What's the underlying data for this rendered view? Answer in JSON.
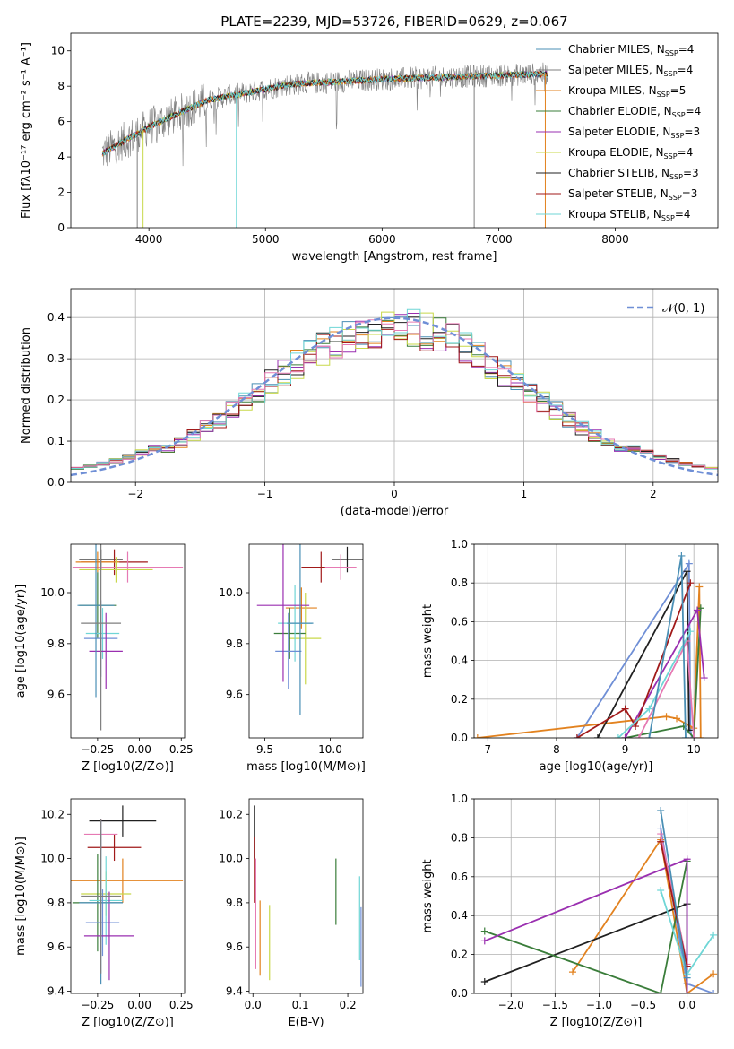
{
  "title": "PLATE=2239, MJD=53726, FIBERID=0629, z=0.067",
  "colors": [
    "#4a8fb5",
    "#7f7f7f",
    "#e2821f",
    "#3a7d3a",
    "#9a2fb0",
    "#c8d84a",
    "#202020",
    "#a11a1a",
    "#6fd6d6",
    "#6f8fd6",
    "#e67ab3"
  ],
  "legend": [
    {
      "label": "Chabrier MILES, N",
      "sub": "SSP",
      "tail": "=4"
    },
    {
      "label": "Salpeter MILES, N",
      "sub": "SSP",
      "tail": "=4"
    },
    {
      "label": "Kroupa MILES, N",
      "sub": "SSP",
      "tail": "=5"
    },
    {
      "label": "Chabrier ELODIE, N",
      "sub": "SSP",
      "tail": "=4"
    },
    {
      "label": "Salpeter ELODIE, N",
      "sub": "SSP",
      "tail": "=3"
    },
    {
      "label": "Kroupa ELODIE, N",
      "sub": "SSP",
      "tail": "=4"
    },
    {
      "label": "Chabrier STELIB, N",
      "sub": "SSP",
      "tail": "=3"
    },
    {
      "label": "Salpeter STELIB, N",
      "sub": "SSP",
      "tail": "=3"
    },
    {
      "label": "Kroupa STELIB, N",
      "sub": "SSP",
      "tail": "=4"
    }
  ],
  "gaussian_label": "𝒩(0, 1)",
  "chart_data": [
    {
      "id": "spectrum",
      "type": "line",
      "xlabel": "wavelength [Angstrom, rest frame]",
      "ylabel": "Flux [fλ10⁻¹⁷ erg cm⁻² s⁻¹ A⁻¹]",
      "xlim": [
        3330,
        8880
      ],
      "ylim": [
        0,
        11
      ],
      "xticks": [
        4000,
        5000,
        6000,
        7000,
        8000
      ],
      "yticks": [
        0,
        2,
        4,
        6,
        8,
        10
      ],
      "x_range": [
        3600,
        7420
      ],
      "grid": false
    },
    {
      "id": "residuals",
      "type": "bar",
      "xlabel": "(data-model)/error",
      "ylabel": "Normed distribution",
      "xlim": [
        -2.5,
        2.5
      ],
      "ylim": [
        0,
        0.47
      ],
      "xticks": [
        -2,
        -1,
        0,
        1,
        2
      ],
      "yticks": [
        0.0,
        0.1,
        0.2,
        0.3,
        0.4
      ],
      "grid": true
    },
    {
      "id": "age_vs_Z",
      "type": "scatter",
      "xlabel": "Z [log10(Z/Z⊙)]",
      "ylabel": "age  [log10(age/yr)]",
      "xlim": [
        -0.41,
        0.27
      ],
      "ylim": [
        9.43,
        10.19
      ],
      "xticks": [
        -0.25,
        0.0,
        0.25
      ],
      "yticks": [
        9.6,
        9.8,
        10.0
      ],
      "grid": false,
      "points": [
        {
          "x": -0.23,
          "y": 10.13,
          "xerr": 0.13,
          "yerr": 0.04
        },
        {
          "x": -0.15,
          "y": 10.12,
          "xerr": 0.2,
          "yerr": 0.05
        },
        {
          "x": -0.07,
          "y": 10.1,
          "xerr": 0.33,
          "yerr": 0.06
        },
        {
          "x": -0.25,
          "y": 10.12,
          "xerr": 0.13,
          "yerr": 0.04
        },
        {
          "x": -0.14,
          "y": 10.09,
          "xerr": 0.22,
          "yerr": 0.05
        },
        {
          "x": -0.25,
          "y": 9.95,
          "xerr": 0.11,
          "yerr": 0.13
        },
        {
          "x": -0.22,
          "y": 9.84,
          "xerr": 0.1,
          "yerr": 0.1
        },
        {
          "x": -0.23,
          "y": 9.82,
          "xerr": 0.1,
          "yerr": 0.15
        },
        {
          "x": -0.2,
          "y": 9.77,
          "xerr": 0.1,
          "yerr": 0.15
        },
        {
          "x": -0.26,
          "y": 9.95,
          "xerr": 0.11,
          "yerr": 0.36
        },
        {
          "x": -0.23,
          "y": 9.88,
          "xerr": 0.12,
          "yerr": 0.42
        }
      ]
    },
    {
      "id": "age_vs_mass",
      "type": "scatter",
      "xlabel": "mass [log10(M/M⊙)]",
      "ylabel": "",
      "xlim": [
        9.38,
        10.25
      ],
      "ylim": [
        9.43,
        10.19
      ],
      "xticks": [
        9.5,
        10.0
      ],
      "yticks": [
        9.6,
        9.8,
        10.0
      ],
      "grid": false,
      "points": [
        {
          "x": 10.13,
          "y": 10.13,
          "xerr": 0.12,
          "yerr": 0.05
        },
        {
          "x": 9.93,
          "y": 10.1,
          "xerr": 0.15,
          "yerr": 0.06
        },
        {
          "x": 10.08,
          "y": 10.1,
          "xerr": 0.12,
          "yerr": 0.05
        },
        {
          "x": 9.78,
          "y": 9.94,
          "xerr": 0.12,
          "yerr": 0.08
        },
        {
          "x": 9.81,
          "y": 9.82,
          "xerr": 0.12,
          "yerr": 0.18
        },
        {
          "x": 9.69,
          "y": 9.84,
          "xerr": 0.12,
          "yerr": 0.1
        },
        {
          "x": 9.73,
          "y": 9.88,
          "xerr": 0.13,
          "yerr": 0.15
        },
        {
          "x": 9.68,
          "y": 9.77,
          "xerr": 0.1,
          "yerr": 0.15
        },
        {
          "x": 9.64,
          "y": 9.95,
          "xerr": 0.2,
          "yerr": 0.3
        },
        {
          "x": 9.77,
          "y": 9.88,
          "xerr": 0.1,
          "yerr": 0.36
        }
      ]
    },
    {
      "id": "weight_vs_age",
      "type": "line",
      "xlabel": "age  [log10(age/yr)]",
      "ylabel": "mass weight",
      "xlim": [
        6.8,
        10.35
      ],
      "ylim": [
        0,
        1.0
      ],
      "xticks": [
        7,
        8,
        9,
        10
      ],
      "yticks": [
        0.0,
        0.2,
        0.4,
        0.6,
        0.8,
        1.0
      ],
      "grid": true,
      "series": [
        {
          "x": [
            8.3,
            9.93,
            9.95,
            9.97
          ],
          "y": [
            0.0,
            0.9,
            0.04,
            0.0
          ]
        },
        {
          "x": [
            6.85,
            9.6,
            9.75,
            10.0,
            10.08,
            10.1
          ],
          "y": [
            0.0,
            0.11,
            0.1,
            0.05,
            0.78,
            0.0
          ]
        },
        {
          "x": [
            8.6,
            9.9,
            9.93
          ],
          "y": [
            0.0,
            0.86,
            0.04
          ]
        },
        {
          "x": [
            9.0,
            9.85,
            10.0,
            10.1
          ],
          "y": [
            0.0,
            0.06,
            0.0,
            0.67
          ]
        },
        {
          "x": [
            9.0,
            10.05,
            10.15
          ],
          "y": [
            0.0,
            0.66,
            0.31
          ]
        },
        {
          "x": [
            9.2,
            9.9,
            10.0
          ],
          "y": [
            0.0,
            0.5,
            0.0
          ]
        },
        {
          "x": [
            8.3,
            9.0,
            9.15,
            9.95
          ],
          "y": [
            0.0,
            0.15,
            0.06,
            0.8
          ]
        },
        {
          "x": [
            8.9,
            9.35,
            9.95
          ],
          "y": [
            0.0,
            0.15,
            0.55
          ]
        },
        {
          "x": [
            9.35,
            9.82,
            9.88
          ],
          "y": [
            0.0,
            0.94,
            0.0
          ]
        }
      ]
    },
    {
      "id": "mass_vs_Z",
      "type": "scatter",
      "xlabel": "Z [log10(Z/Z⊙)]",
      "ylabel": "mass [log10(M/M⊙)]",
      "xlim": [
        -0.41,
        0.27
      ],
      "ylim": [
        9.39,
        10.27
      ],
      "xticks": [
        -0.25,
        0.0,
        0.25
      ],
      "yticks": [
        9.4,
        9.6,
        9.8,
        10.0,
        10.2
      ],
      "grid": false,
      "points": [
        {
          "x": -0.1,
          "y": 10.17,
          "xerr": 0.2,
          "yerr": 0.07
        },
        {
          "x": -0.15,
          "y": 10.05,
          "xerr": 0.16,
          "yerr": 0.06
        },
        {
          "x": -0.23,
          "y": 10.11,
          "xerr": 0.1,
          "yerr": 0.07
        },
        {
          "x": -0.1,
          "y": 9.9,
          "xerr": 0.36,
          "yerr": 0.1
        },
        {
          "x": -0.2,
          "y": 9.84,
          "xerr": 0.15,
          "yerr": 0.1
        },
        {
          "x": -0.25,
          "y": 9.8,
          "xerr": 0.15,
          "yerr": 0.22
        },
        {
          "x": -0.2,
          "y": 9.81,
          "xerr": 0.1,
          "yerr": 0.2
        },
        {
          "x": -0.22,
          "y": 9.71,
          "xerr": 0.1,
          "yerr": 0.15
        },
        {
          "x": -0.18,
          "y": 9.65,
          "xerr": 0.15,
          "yerr": 0.2
        },
        {
          "x": -0.23,
          "y": 9.8,
          "xerr": 0.13,
          "yerr": 0.37
        },
        {
          "x": -0.23,
          "y": 9.83,
          "xerr": 0.12,
          "yerr": 0.35
        }
      ]
    },
    {
      "id": "mass_vs_EBV",
      "type": "scatter",
      "xlabel": "E(B-V)",
      "ylabel": "",
      "xlim": [
        -0.008,
        0.232
      ],
      "ylim": [
        9.39,
        10.27
      ],
      "xticks": [
        0.0,
        0.1,
        0.2
      ],
      "yticks": [
        9.4,
        9.6,
        9.8,
        10.0,
        10.2
      ],
      "grid": false,
      "points": [
        {
          "x": 0.003,
          "y": 10.12,
          "xerr": 0,
          "yerr": 0.12
        },
        {
          "x": 0.003,
          "y": 9.95,
          "xerr": 0,
          "yerr": 0.15
        },
        {
          "x": 0.006,
          "y": 9.75,
          "xerr": 0,
          "yerr": 0.25
        },
        {
          "x": 0.015,
          "y": 9.64,
          "xerr": 0,
          "yerr": 0.17
        },
        {
          "x": 0.035,
          "y": 9.62,
          "xerr": 0,
          "yerr": 0.17
        },
        {
          "x": 0.175,
          "y": 9.85,
          "xerr": 0,
          "yerr": 0.15
        },
        {
          "x": 0.225,
          "y": 9.73,
          "xerr": 0,
          "yerr": 0.19
        },
        {
          "x": 0.228,
          "y": 9.6,
          "xerr": 0,
          "yerr": 0.18
        }
      ]
    },
    {
      "id": "weight_vs_Z",
      "type": "line",
      "xlabel": "Z [log10(Z/Z⊙)]",
      "ylabel": "mass weight",
      "xlim": [
        -2.42,
        0.35
      ],
      "ylim": [
        0,
        1.0
      ],
      "xticks": [
        -2.0,
        -1.5,
        -1.0,
        -0.5,
        0.0
      ],
      "yticks": [
        0.0,
        0.2,
        0.4,
        0.6,
        0.8,
        1.0
      ],
      "grid": true,
      "series": [
        {
          "x": [
            -0.3,
            0.0,
            0.3
          ],
          "y": [
            0.85,
            0.05,
            0.0
          ]
        },
        {
          "x": [
            -1.3,
            -0.3,
            0.0,
            0.3
          ],
          "y": [
            0.11,
            0.79,
            0.0,
            0.1
          ]
        },
        {
          "x": [
            -2.3,
            0.0,
            0.0
          ],
          "y": [
            0.06,
            0.46,
            0.0
          ]
        },
        {
          "x": [
            -2.3,
            -0.3,
            0.0
          ],
          "y": [
            0.32,
            0.0,
            0.68
          ]
        },
        {
          "x": [
            -2.3,
            0.0,
            0.0
          ],
          "y": [
            0.27,
            0.69,
            0.0
          ]
        },
        {
          "x": [
            -0.3,
            0.0
          ],
          "y": [
            0.82,
            0.15
          ]
        },
        {
          "x": [
            -0.3,
            0.0
          ],
          "y": [
            0.78,
            0.14
          ]
        },
        {
          "x": [
            -0.3,
            0.0,
            0.3
          ],
          "y": [
            0.53,
            0.1,
            0.3
          ]
        },
        {
          "x": [
            -0.3,
            0.0
          ],
          "y": [
            0.94,
            0.08
          ]
        }
      ]
    }
  ]
}
